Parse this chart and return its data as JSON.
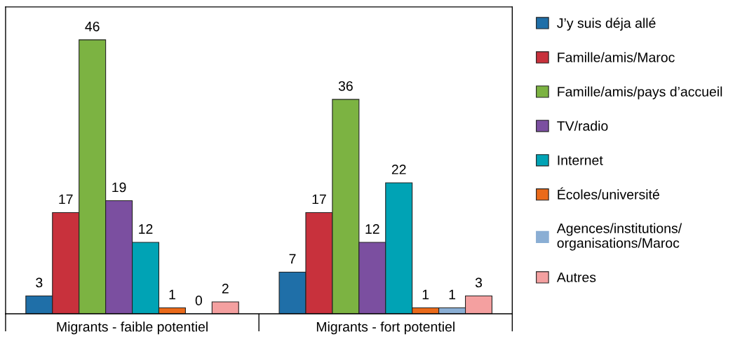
{
  "chart_data": {
    "type": "bar",
    "categories": [
      "Migrants - faible potentiel",
      "Migrants - fort potentiel"
    ],
    "series": [
      {
        "name": "J’y suis déja allé",
        "color": "#1f6fa8",
        "values": [
          3,
          7
        ]
      },
      {
        "name": "Famille/amis/Maroc",
        "color": "#c8313c",
        "values": [
          17,
          17
        ]
      },
      {
        "name": "Famille/amis/pays d’accueil",
        "color": "#7cb342",
        "values": [
          46,
          36
        ]
      },
      {
        "name": "TV/radio",
        "color": "#7b4fa0",
        "values": [
          19,
          12
        ]
      },
      {
        "name": "Internet",
        "color": "#00a3b5",
        "values": [
          12,
          22
        ]
      },
      {
        "name": "Écoles/université",
        "color": "#ea6a1a",
        "values": [
          1,
          1
        ]
      },
      {
        "name": "Agences/institutions/\norganisations/Maroc",
        "color": "#8aaed4",
        "values": [
          0,
          1
        ]
      },
      {
        "name": "Autres",
        "color": "#f4a0a0",
        "values": [
          2,
          3
        ]
      }
    ],
    "data_labels": true,
    "legend": "right",
    "grid": false
  }
}
